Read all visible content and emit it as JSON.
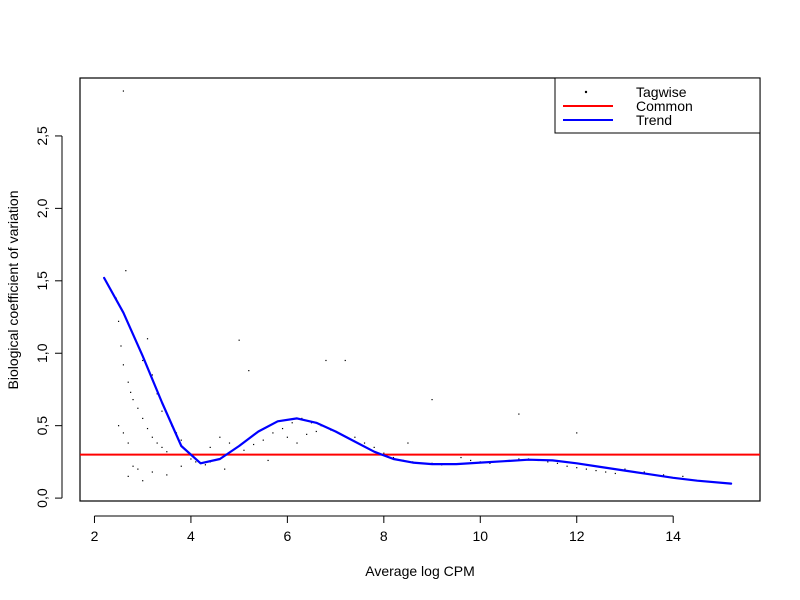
{
  "chart_data": {
    "type": "scatter",
    "title": "",
    "xlabel": "Average log CPM",
    "ylabel": "Biological coefficient of variation",
    "xlim": [
      1.7,
      15.8
    ],
    "ylim": [
      -0.02,
      2.9
    ],
    "x_ticks": [
      2,
      4,
      6,
      8,
      10,
      12,
      14
    ],
    "x_tick_labels": [
      "2",
      "4",
      "6",
      "8",
      "10",
      "12",
      "14"
    ],
    "y_ticks": [
      0.0,
      0.5,
      1.0,
      1.5,
      2.0,
      2.5
    ],
    "y_tick_labels": [
      "0,0",
      "0,5",
      "1,0",
      "1,5",
      "2,0",
      "2,5"
    ],
    "legend": {
      "position": "top-right",
      "entries": [
        {
          "label": "Tagwise",
          "symbol": "point",
          "color": "#000000"
        },
        {
          "label": "Common",
          "symbol": "line",
          "color": "#ff0000"
        },
        {
          "label": "Trend",
          "symbol": "line",
          "color": "#0000ff"
        }
      ]
    },
    "series": [
      {
        "name": "Tagwise",
        "kind": "points",
        "color": "#000000",
        "points": [
          [
            2.6,
            2.81
          ],
          [
            2.65,
            1.57
          ],
          [
            2.45,
            1.38
          ],
          [
            2.5,
            1.22
          ],
          [
            2.55,
            1.05
          ],
          [
            2.6,
            0.92
          ],
          [
            2.7,
            0.8
          ],
          [
            2.75,
            0.73
          ],
          [
            2.8,
            0.68
          ],
          [
            2.9,
            0.62
          ],
          [
            3.0,
            0.55
          ],
          [
            3.1,
            0.48
          ],
          [
            3.2,
            0.42
          ],
          [
            3.3,
            0.38
          ],
          [
            3.4,
            0.35
          ],
          [
            3.5,
            0.32
          ],
          [
            2.5,
            0.5
          ],
          [
            2.6,
            0.45
          ],
          [
            2.7,
            0.38
          ],
          [
            2.8,
            0.3
          ],
          [
            2.9,
            0.2
          ],
          [
            3.0,
            0.12
          ],
          [
            2.7,
            0.15
          ],
          [
            2.8,
            0.22
          ],
          [
            3.0,
            0.95
          ],
          [
            3.1,
            1.1
          ],
          [
            3.2,
            0.85
          ],
          [
            3.3,
            0.72
          ],
          [
            3.4,
            0.6
          ],
          [
            3.6,
            0.5
          ],
          [
            3.7,
            0.45
          ],
          [
            3.8,
            0.4
          ],
          [
            3.9,
            0.3
          ],
          [
            4.0,
            0.27
          ],
          [
            4.1,
            0.25
          ],
          [
            4.2,
            0.24
          ],
          [
            4.3,
            0.23
          ],
          [
            4.4,
            0.25
          ],
          [
            4.5,
            0.26
          ],
          [
            4.6,
            0.3
          ],
          [
            4.4,
            0.35
          ],
          [
            4.6,
            0.42
          ],
          [
            4.8,
            0.38
          ],
          [
            5.0,
            1.09
          ],
          [
            5.2,
            0.88
          ],
          [
            5.1,
            0.33
          ],
          [
            5.3,
            0.37
          ],
          [
            5.5,
            0.4
          ],
          [
            5.7,
            0.45
          ],
          [
            5.9,
            0.48
          ],
          [
            6.1,
            0.52
          ],
          [
            6.3,
            0.55
          ],
          [
            6.5,
            0.52
          ],
          [
            6.7,
            0.5
          ],
          [
            6.9,
            0.47
          ],
          [
            7.1,
            0.44
          ],
          [
            6.0,
            0.42
          ],
          [
            6.2,
            0.38
          ],
          [
            6.4,
            0.44
          ],
          [
            6.6,
            0.46
          ],
          [
            6.8,
            0.95
          ],
          [
            7.2,
            0.95
          ],
          [
            7.4,
            0.42
          ],
          [
            7.6,
            0.38
          ],
          [
            7.8,
            0.35
          ],
          [
            8.0,
            0.31
          ],
          [
            8.2,
            0.28
          ],
          [
            8.4,
            0.26
          ],
          [
            8.6,
            0.25
          ],
          [
            8.8,
            0.24
          ],
          [
            9.0,
            0.24
          ],
          [
            9.2,
            0.23
          ],
          [
            8.5,
            0.38
          ],
          [
            9.4,
            0.3
          ],
          [
            9.6,
            0.28
          ],
          [
            9.8,
            0.26
          ],
          [
            10.0,
            0.25
          ],
          [
            10.2,
            0.24
          ],
          [
            10.4,
            0.25
          ],
          [
            10.6,
            0.26
          ],
          [
            10.8,
            0.27
          ],
          [
            11.0,
            0.27
          ],
          [
            11.2,
            0.26
          ],
          [
            11.4,
            0.25
          ],
          [
            11.6,
            0.24
          ],
          [
            11.8,
            0.22
          ],
          [
            12.0,
            0.21
          ],
          [
            12.2,
            0.2
          ],
          [
            9.0,
            0.68
          ],
          [
            10.8,
            0.58
          ],
          [
            12.0,
            0.45
          ],
          [
            12.4,
            0.19
          ],
          [
            12.6,
            0.18
          ],
          [
            12.8,
            0.17
          ],
          [
            13.0,
            0.2
          ],
          [
            13.4,
            0.18
          ],
          [
            13.8,
            0.16
          ],
          [
            14.2,
            0.15
          ],
          [
            3.2,
            0.18
          ],
          [
            3.5,
            0.16
          ],
          [
            3.8,
            0.22
          ],
          [
            4.7,
            0.2
          ],
          [
            5.6,
            0.26
          ],
          [
            6.2,
            0.3
          ]
        ]
      },
      {
        "name": "Common",
        "kind": "hline",
        "color": "#ff0000",
        "y": 0.3
      },
      {
        "name": "Trend",
        "kind": "line",
        "color": "#0000ff",
        "points": [
          [
            2.2,
            1.52
          ],
          [
            2.6,
            1.28
          ],
          [
            3.0,
            0.98
          ],
          [
            3.4,
            0.66
          ],
          [
            3.8,
            0.36
          ],
          [
            4.2,
            0.24
          ],
          [
            4.6,
            0.27
          ],
          [
            5.0,
            0.36
          ],
          [
            5.4,
            0.46
          ],
          [
            5.8,
            0.53
          ],
          [
            6.2,
            0.55
          ],
          [
            6.6,
            0.52
          ],
          [
            7.0,
            0.46
          ],
          [
            7.4,
            0.39
          ],
          [
            7.8,
            0.32
          ],
          [
            8.2,
            0.27
          ],
          [
            8.6,
            0.245
          ],
          [
            9.0,
            0.235
          ],
          [
            9.5,
            0.235
          ],
          [
            10.0,
            0.245
          ],
          [
            10.5,
            0.255
          ],
          [
            11.0,
            0.265
          ],
          [
            11.5,
            0.26
          ],
          [
            12.0,
            0.24
          ],
          [
            12.5,
            0.215
          ],
          [
            13.0,
            0.19
          ],
          [
            13.5,
            0.165
          ],
          [
            14.0,
            0.14
          ],
          [
            14.5,
            0.12
          ],
          [
            15.2,
            0.1
          ]
        ]
      }
    ]
  }
}
